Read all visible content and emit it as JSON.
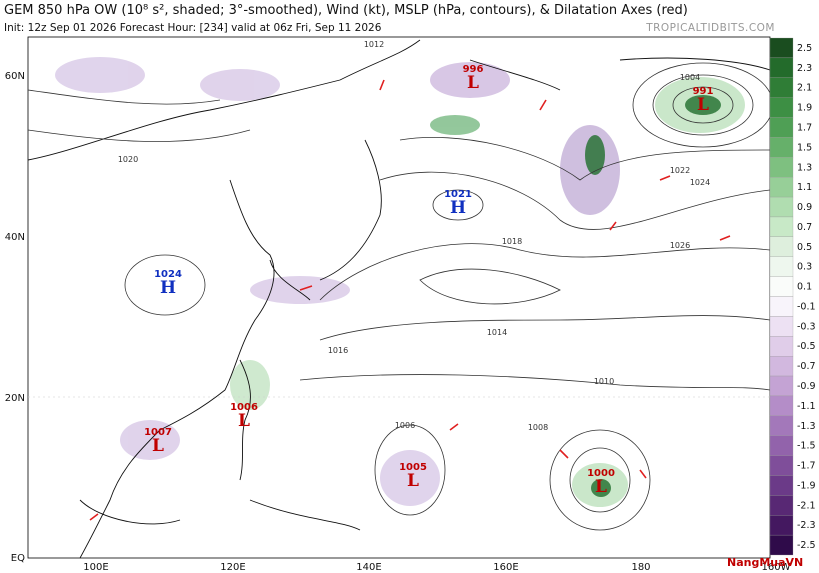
{
  "header": {
    "title": "GEM 850 hPa OW (10⁸ s², shaded; 3°-smoothed), Wind (kt), MSLP (hPa, contours), & Dilatation Axes (red)",
    "subtitle_left": "Init: 12z Sep 01 2026   Forecast Hour: [234]   valid at 06z Fri, Sep 11 2026",
    "site": "TROPICALTIDBITS.COM"
  },
  "lat_labels": [
    "60N",
    "40N",
    "20N",
    "EQ"
  ],
  "lon_labels": [
    "100E",
    "120E",
    "140E",
    "160E",
    "180",
    "160W"
  ],
  "colorbar": [
    "2.5",
    "2.3",
    "2.1",
    "1.9",
    "1.7",
    "1.5",
    "1.3",
    "1.1",
    "0.9",
    "0.7",
    "0.5",
    "0.3",
    "0.1",
    "-0.1",
    "-0.3",
    "-0.5",
    "-0.7",
    "-0.9",
    "-1.1",
    "-1.3",
    "-1.5",
    "-1.7",
    "-1.9",
    "-2.1",
    "-2.3",
    "-2.5"
  ],
  "centers": [
    {
      "value": "996",
      "letter": "L"
    },
    {
      "value": "991",
      "letter": "L"
    },
    {
      "value": "1021",
      "letter": "H"
    },
    {
      "value": "1024",
      "letter": "H"
    },
    {
      "value": "1006",
      "letter": "L"
    },
    {
      "value": "1007",
      "letter": "L"
    },
    {
      "value": "1005",
      "letter": "L"
    },
    {
      "value": "1000",
      "letter": "L"
    }
  ],
  "isobar_labels": [
    "1012",
    "1016",
    "1018",
    "1020",
    "1014",
    "1010",
    "1008",
    "1006",
    "1024",
    "1026",
    "1004",
    "1022"
  ],
  "watermark": "NangMuaVN"
}
